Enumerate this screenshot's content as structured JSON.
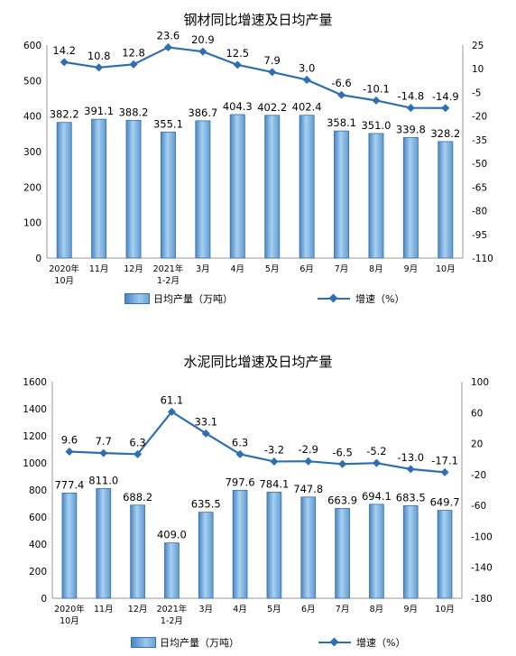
{
  "chart_data": [
    {
      "type": "bar+line",
      "title": "钢材同比增速及日均产量",
      "categories": [
        "2020年\n10月",
        "11月",
        "12月",
        "2021年\n1-2月",
        "3月",
        "4月",
        "5月",
        "6月",
        "7月",
        "8月",
        "9月",
        "10月"
      ],
      "series": [
        {
          "name": "日均产量（万吨）",
          "type": "bar",
          "axis": "left",
          "values": [
            382.2,
            391.1,
            388.2,
            355.1,
            386.7,
            404.3,
            402.2,
            402.4,
            358.1,
            351.0,
            339.8,
            328.2
          ],
          "labels": [
            "382.2",
            "391.1",
            "388.2",
            "355.1",
            "386.7",
            "404.3",
            "402.2",
            "402.4",
            "358.1",
            "351.0",
            "339.8",
            "328.2"
          ]
        },
        {
          "name": "增速（%）",
          "type": "line",
          "axis": "right",
          "values": [
            14.2,
            10.8,
            12.8,
            23.6,
            20.9,
            12.5,
            7.9,
            3.0,
            -6.6,
            -10.1,
            -14.8,
            -14.9
          ],
          "labels": [
            "14.2",
            "10.8",
            "12.8",
            "23.6",
            "20.9",
            "12.5",
            "7.9",
            "3.0",
            "-6.6",
            "-10.1",
            "-14.8",
            "-14.9"
          ]
        }
      ],
      "yleft": {
        "min": 0,
        "max": 600,
        "ticks": [
          "0",
          "100",
          "200",
          "300",
          "400",
          "500",
          "600"
        ]
      },
      "yright": {
        "min": -110,
        "max": 25,
        "ticks": [
          "-110",
          "-95",
          "-80",
          "-65",
          "-50",
          "-35",
          "-20",
          "-5",
          "10",
          "25"
        ]
      },
      "legend": {
        "bar": "日均产量（万吨）",
        "line": "增速（%）",
        "position": "bottom"
      },
      "colors": {
        "bar": "#6fa9dc",
        "bar_edge": "#3a6fa6",
        "line": "#2e6fb4"
      }
    },
    {
      "type": "bar+line",
      "title": "水泥同比增速及日均产量",
      "categories": [
        "2020年\n10月",
        "11月",
        "12月",
        "2021年\n1-2月",
        "3月",
        "4月",
        "5月",
        "6月",
        "7月",
        "8月",
        "9月",
        "10月"
      ],
      "series": [
        {
          "name": "日均产量（万吨）",
          "type": "bar",
          "axis": "left",
          "values": [
            777.4,
            811.0,
            688.2,
            409.0,
            635.5,
            797.6,
            784.1,
            747.8,
            663.9,
            694.1,
            683.5,
            649.7
          ],
          "labels": [
            "777.4",
            "811.0",
            "688.2",
            "409.0",
            "635.5",
            "797.6",
            "784.1",
            "747.8",
            "663.9",
            "694.1",
            "683.5",
            "649.7"
          ]
        },
        {
          "name": "增速（%）",
          "type": "line",
          "axis": "right",
          "values": [
            9.6,
            7.7,
            6.3,
            61.1,
            33.1,
            6.3,
            -3.2,
            -2.9,
            -6.5,
            -5.2,
            -13.0,
            -17.1
          ],
          "labels": [
            "9.6",
            "7.7",
            "6.3",
            "61.1",
            "33.1",
            "6.3",
            "-3.2",
            "-2.9",
            "-6.5",
            "-5.2",
            "-13.0",
            "-17.1"
          ]
        }
      ],
      "yleft": {
        "min": 0,
        "max": 1600,
        "ticks": [
          "0",
          "200",
          "400",
          "600",
          "800",
          "1000",
          "1200",
          "1400",
          "1600"
        ]
      },
      "yright": {
        "min": -180,
        "max": 100,
        "ticks": [
          "-180",
          "-140",
          "-100",
          "-60",
          "-20",
          "20",
          "60",
          "100"
        ]
      },
      "legend": {
        "bar": "日均产量（万吨）",
        "line": "增速（%）",
        "position": "bottom"
      },
      "colors": {
        "bar": "#6fa9dc",
        "bar_edge": "#3a6fa6",
        "line": "#2e6fb4"
      }
    }
  ]
}
